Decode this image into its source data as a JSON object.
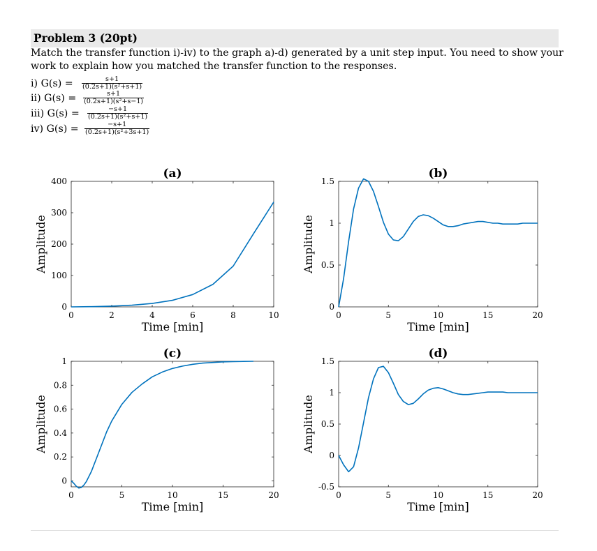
{
  "problem": {
    "title": "Problem 3 (20pt)",
    "line1": "Match the transfer function i)-iv) to the graph a)-d) generated by a unit step input. You need to show your",
    "line2": "work to explain how you matched the transfer function to the responses.",
    "functions": [
      {
        "label": "i) G(s) =",
        "num": "s+1",
        "den": "(0.2s+1)(s²+s+1)"
      },
      {
        "label": "ii) G(s) =",
        "num": "s+1",
        "den": "(0.2s+1)(s²+s−1)"
      },
      {
        "label": "iii) G(s) =",
        "num": "−s+1",
        "den": "(0.2s+1)(s²+s+1)"
      },
      {
        "label": "iv) G(s) =",
        "num": "−s+1",
        "den": "(0.2s+1)(s²+3s+1)"
      }
    ]
  },
  "colors": {
    "line": "#0072BD",
    "axis": "#262626",
    "header_bg": "#e9e9e9"
  },
  "chart_data": [
    {
      "id": "a",
      "type": "line",
      "title": "(a)",
      "xlabel": "Time [min]",
      "ylabel": "Amplitude",
      "xlim": [
        0,
        10
      ],
      "ylim": [
        0,
        400
      ],
      "xticks": [
        0,
        2,
        4,
        6,
        8,
        10
      ],
      "yticks": [
        0,
        100,
        200,
        300,
        400
      ],
      "series": [
        {
          "x": [
            0,
            1,
            2,
            3,
            4,
            5,
            6,
            7,
            8,
            9,
            10
          ],
          "y": [
            0,
            0.8,
            2.4,
            5.4,
            10.9,
            21,
            39.3,
            72,
            130,
            233,
            334
          ]
        }
      ]
    },
    {
      "id": "b",
      "type": "line",
      "title": "(b)",
      "xlabel": "Time [min]",
      "ylabel": "Amplitude",
      "xlim": [
        0,
        20
      ],
      "ylim": [
        0,
        1.5
      ],
      "xticks": [
        0,
        5,
        10,
        15,
        20
      ],
      "yticks": [
        0,
        0.5,
        1,
        1.5
      ],
      "series": [
        {
          "x": [
            0,
            0.5,
            1,
            1.5,
            2,
            2.5,
            3,
            3.5,
            4,
            4.5,
            5,
            5.5,
            6,
            6.5,
            7,
            7.5,
            8,
            8.5,
            9,
            9.5,
            10,
            10.5,
            11,
            11.5,
            12,
            12.5,
            13,
            13.5,
            14,
            14.5,
            15,
            15.5,
            16,
            16.5,
            17,
            17.5,
            18,
            18.5,
            19,
            19.5,
            20
          ],
          "y": [
            0,
            0.34,
            0.78,
            1.17,
            1.42,
            1.53,
            1.5,
            1.38,
            1.2,
            1.01,
            0.87,
            0.8,
            0.79,
            0.84,
            0.93,
            1.02,
            1.08,
            1.1,
            1.09,
            1.06,
            1.02,
            0.98,
            0.96,
            0.96,
            0.97,
            0.99,
            1.0,
            1.01,
            1.02,
            1.02,
            1.01,
            1.0,
            1.0,
            0.99,
            0.99,
            0.99,
            0.99,
            1.0,
            1.0,
            1.0,
            1.0
          ]
        }
      ]
    },
    {
      "id": "c",
      "type": "line",
      "title": "(c)",
      "xlabel": "Time [min]",
      "ylabel": "Amplitude",
      "xlim": [
        0,
        20
      ],
      "ylim": [
        -0.05,
        1
      ],
      "xticks": [
        0,
        5,
        10,
        15,
        20
      ],
      "yticks": [
        0,
        0.2,
        0.4,
        0.6,
        0.8,
        1
      ],
      "series": [
        {
          "x": [
            0,
            0.25,
            0.5,
            0.75,
            1,
            1.25,
            1.5,
            2,
            2.5,
            3,
            3.5,
            4,
            5,
            6,
            7,
            8,
            9,
            10,
            11,
            12,
            13,
            14,
            15,
            16,
            17,
            18
          ],
          "y": [
            0,
            -0.02,
            -0.045,
            -0.06,
            -0.055,
            -0.035,
            -0.005,
            0.08,
            0.19,
            0.3,
            0.41,
            0.5,
            0.64,
            0.74,
            0.81,
            0.87,
            0.91,
            0.94,
            0.96,
            0.975,
            0.985,
            0.99,
            0.995,
            0.997,
            0.999,
            1.0
          ]
        }
      ]
    },
    {
      "id": "d",
      "type": "line",
      "title": "(d)",
      "xlabel": "Time [min]",
      "ylabel": "Amplitude",
      "xlim": [
        0,
        20
      ],
      "ylim": [
        -0.5,
        1.5
      ],
      "xticks": [
        0,
        5,
        10,
        15,
        20
      ],
      "yticks": [
        -0.5,
        0,
        0.5,
        1,
        1.5
      ],
      "series": [
        {
          "x": [
            0,
            0.5,
            1,
            1.5,
            2,
            2.5,
            3,
            3.5,
            4,
            4.5,
            5,
            5.5,
            6,
            6.5,
            7,
            7.5,
            8,
            8.5,
            9,
            9.5,
            10,
            10.5,
            11,
            11.5,
            12,
            12.5,
            13,
            13.5,
            14,
            14.5,
            15,
            15.5,
            16,
            16.5,
            17,
            17.5,
            18,
            18.5,
            19,
            19.5,
            20
          ],
          "y": [
            0,
            -0.15,
            -0.26,
            -0.18,
            0.12,
            0.52,
            0.92,
            1.22,
            1.4,
            1.42,
            1.32,
            1.15,
            0.97,
            0.86,
            0.81,
            0.83,
            0.9,
            0.98,
            1.04,
            1.07,
            1.08,
            1.06,
            1.03,
            1.0,
            0.98,
            0.97,
            0.97,
            0.98,
            0.99,
            1.0,
            1.01,
            1.01,
            1.01,
            1.01,
            1.0,
            1.0,
            1.0,
            1.0,
            1.0,
            1.0,
            1.0
          ]
        }
      ]
    }
  ]
}
